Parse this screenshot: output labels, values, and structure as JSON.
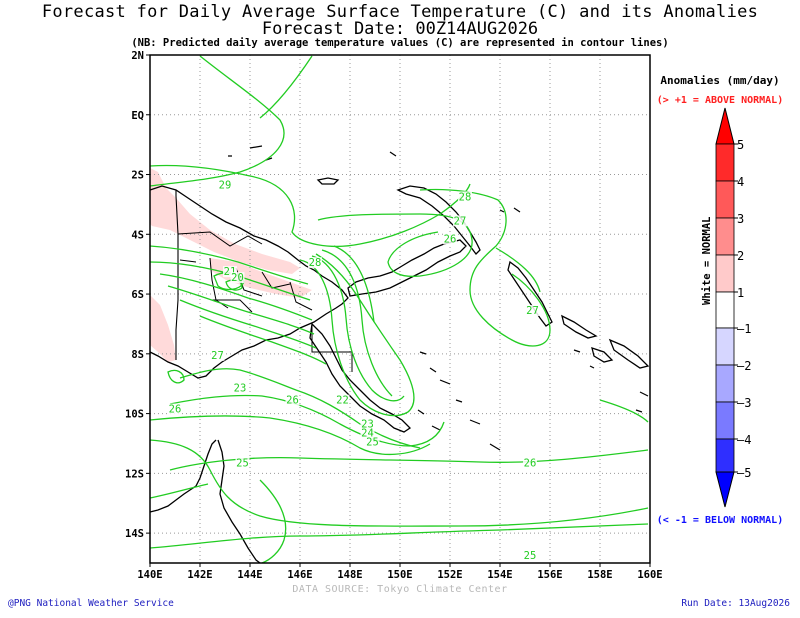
{
  "title_line1": "Forecast for Daily Average Surface Temperature (C) and its Anomalies",
  "title_line2": "Forecast Date: 00Z14AUG2026",
  "note": "(NB: Predicted daily average temperature values (C) are represented in contour lines)",
  "legend": {
    "title": "Anomalies (mm/day)",
    "above_label": "(> +1 = ABOVE NORMAL)",
    "below_label": "(< -1 = BELOW NORMAL)",
    "normal_label": "White = NORMAL",
    "levels": [
      "5",
      "4",
      "3",
      "2",
      "1",
      "–1",
      "–2",
      "–3",
      "–4",
      "–5"
    ],
    "colors": {
      "4_5": "#ff2a2a",
      "3_4": "#ff5959",
      "2_3": "#ff8d8d",
      "1_2": "#ffcaca",
      "normal": "#ffffff",
      "m1_m2": "#d6d6ff",
      "m2_m3": "#a8a8ff",
      "m3_m4": "#7a7aff",
      "m4_m5": "#2f2fff",
      "top_arrow": "#ff0000",
      "bottom_arrow": "#0000ff"
    }
  },
  "map": {
    "lon_range": [
      140,
      160
    ],
    "lat_range": [
      -15,
      2
    ],
    "lon_labels": [
      "140E",
      "142E",
      "144E",
      "146E",
      "148E",
      "150E",
      "152E",
      "154E",
      "156E",
      "158E",
      "160E"
    ],
    "lat_labels": [
      "2N",
      "EQ",
      "2S",
      "4S",
      "6S",
      "8S",
      "10S",
      "12S",
      "14S"
    ],
    "contour_color": "#22cc22",
    "contour_labels": [
      {
        "text": "29",
        "lon": 143.0,
        "lat": -2.4
      },
      {
        "text": "28",
        "lon": 152.6,
        "lat": -2.8
      },
      {
        "text": "27",
        "lon": 152.4,
        "lat": -3.6
      },
      {
        "text": "26",
        "lon": 152.0,
        "lat": -4.2
      },
      {
        "text": "28",
        "lon": 146.6,
        "lat": -5.0
      },
      {
        "text": "21",
        "lon": 143.2,
        "lat": -5.3
      },
      {
        "text": "20",
        "lon": 143.5,
        "lat": -5.5
      },
      {
        "text": "27",
        "lon": 142.7,
        "lat": -8.1
      },
      {
        "text": "23",
        "lon": 143.6,
        "lat": -9.2
      },
      {
        "text": "26",
        "lon": 141.0,
        "lat": -9.9
      },
      {
        "text": "26",
        "lon": 145.7,
        "lat": -9.6
      },
      {
        "text": "22",
        "lon": 147.7,
        "lat": -9.6
      },
      {
        "text": "23",
        "lon": 148.7,
        "lat": -10.4
      },
      {
        "text": "24",
        "lon": 148.7,
        "lat": -10.7
      },
      {
        "text": "25",
        "lon": 148.9,
        "lat": -11.0
      },
      {
        "text": "27",
        "lon": 155.3,
        "lat": -6.6
      },
      {
        "text": "25",
        "lon": 143.7,
        "lat": -11.7
      },
      {
        "text": "26",
        "lon": 155.2,
        "lat": -11.7
      },
      {
        "text": "25",
        "lon": 155.2,
        "lat": -14.8
      }
    ],
    "anomaly_regions": [
      {
        "name": "above-normal-west-png",
        "level": "1_2"
      },
      {
        "name": "above-normal-highlands",
        "level": "1_2"
      },
      {
        "name": "above-normal-southwest",
        "level": "1_2"
      }
    ]
  },
  "footer": {
    "data_source": "DATA SOURCE: Tokyo Climate Center",
    "credit": "@PNG National Weather Service",
    "run_date": "Run Date: 13Aug2026"
  }
}
